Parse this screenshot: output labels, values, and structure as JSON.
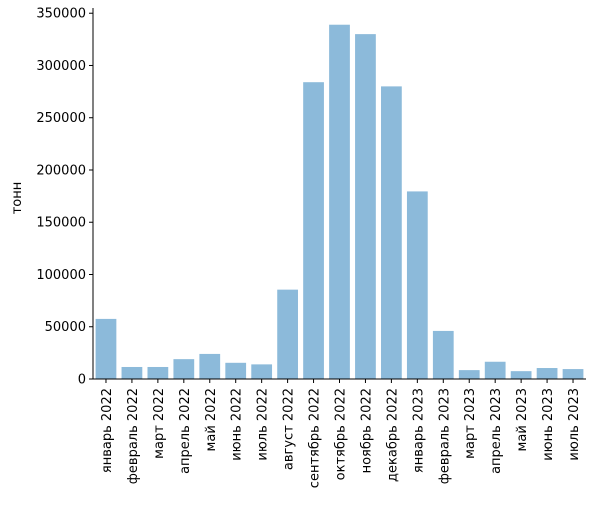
{
  "chart_data": {
    "type": "bar",
    "title": "",
    "xlabel": "",
    "ylabel": "тонн",
    "ylim": [
      0,
      355000
    ],
    "yticks": [
      0,
      50000,
      100000,
      150000,
      200000,
      250000,
      300000,
      350000
    ],
    "grid": false,
    "legend": "none",
    "bar_color": "#8cbada",
    "categories": [
      "январь 2022",
      "февраль 2022",
      "март 2022",
      "апрель 2022",
      "май 2022",
      "июнь 2022",
      "июль 2022",
      "август 2022",
      "сентябрь 2022",
      "октябрь 2022",
      "ноябрь 2022",
      "декабрь 2022",
      "январь 2023",
      "февраль 2023",
      "март 2023",
      "апрель 2023",
      "май 2023",
      "июнь 2023",
      "июль 2023"
    ],
    "values": [
      57500,
      11500,
      11500,
      19000,
      24000,
      15500,
      14000,
      85500,
      284000,
      339000,
      330000,
      280000,
      179500,
      46000,
      8500,
      16500,
      7500,
      10500,
      9500
    ]
  }
}
